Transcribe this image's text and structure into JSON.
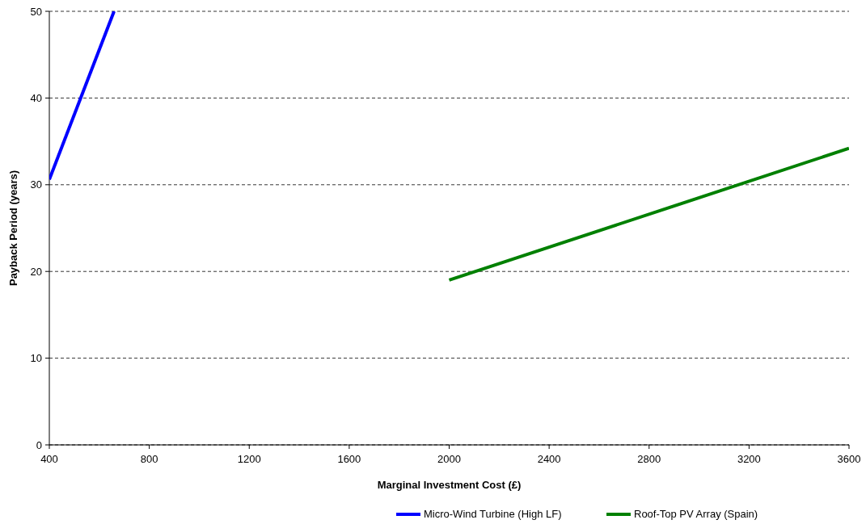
{
  "chart_data": {
    "type": "line",
    "xlabel": "Marginal Investment Cost (£)",
    "ylabel": "Payback Period (years)",
    "xlim": [
      400,
      3600
    ],
    "xticks": [
      400,
      800,
      1200,
      1600,
      2000,
      2400,
      2800,
      3200,
      3600
    ],
    "ylim": [
      0,
      50
    ],
    "yticks": [
      0,
      10,
      20,
      30,
      40,
      50
    ],
    "grid": "y",
    "legend": "bottom",
    "marker": "none",
    "line_style": "solid",
    "series": [
      {
        "name": "Micro-Wind Turbine (High LF)",
        "color": "#0000ff",
        "x": [
          400,
          659
        ],
        "values": [
          30.6,
          50
        ]
      },
      {
        "name": "Roof-Top PV Array (Spain)",
        "color": "#008000",
        "x": [
          2000,
          3600
        ],
        "values": [
          19,
          34.2
        ]
      }
    ]
  }
}
